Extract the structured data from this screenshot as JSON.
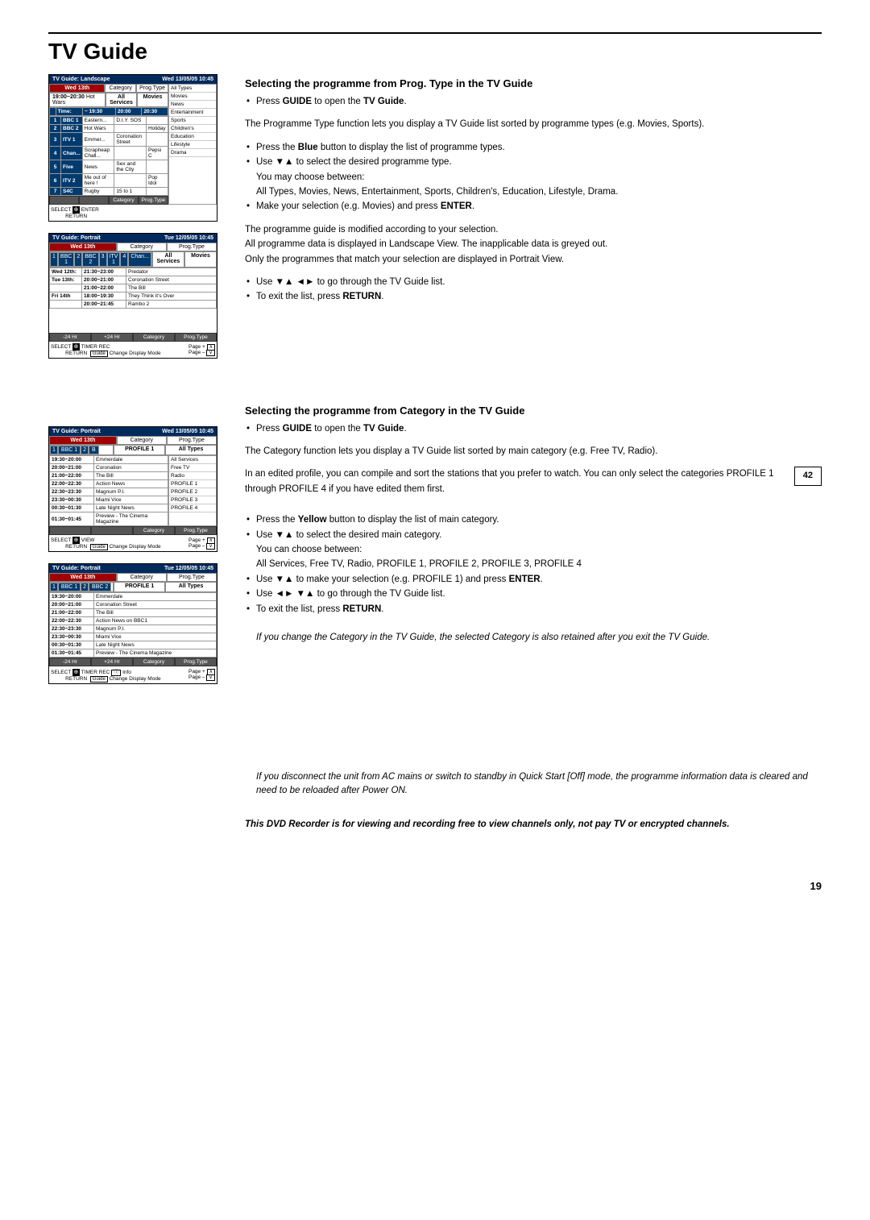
{
  "page": {
    "title": "TV Guide",
    "number": "19"
  },
  "tvguide1": {
    "title": "TV Guide: Landscape",
    "datetime": "Wed 13/05/05  10:45",
    "cat_label": "Category",
    "cat_val": "All Services",
    "type_label": "Prog.Type",
    "type_val": "Movies",
    "day": "Wed 13th",
    "timeLabel": "Time:",
    "now": "19:00~20:30",
    "nowProg": "Hot Wars",
    "cols": [
      "~ 19:30",
      "20:00",
      "20:30"
    ],
    "rows": [
      {
        "n": "1",
        "ch": "BBC 1",
        "cells": [
          "Eastern...",
          "D.I.Y. SOS",
          ""
        ]
      },
      {
        "n": "2",
        "ch": "BBC 2",
        "cells": [
          "Hot Wars",
          "",
          "Holiday"
        ]
      },
      {
        "n": "3",
        "ch": "ITV 1",
        "cells": [
          "Emmer...",
          "Coronation Street",
          ""
        ]
      },
      {
        "n": "4",
        "ch": "Chan...",
        "cells": [
          "Scrapheap Chall...",
          "",
          "Pepsi C"
        ]
      },
      {
        "n": "5",
        "ch": "Five",
        "cells": [
          "News",
          "Sex and the City",
          ""
        ]
      },
      {
        "n": "6",
        "ch": "ITV 2",
        "cells": [
          "Me out of here !",
          "",
          "Pop Idol"
        ]
      },
      {
        "n": "7",
        "ch": "S4C",
        "cells": [
          "Rugby",
          "15 to 1",
          ""
        ]
      }
    ],
    "types": [
      "All Types",
      "Movies",
      "News",
      "Entertainment",
      "Sports",
      "Children's",
      "Education",
      "Lifestyle",
      "Drama"
    ],
    "footer": [
      "",
      "",
      "Category",
      "Prog.Type"
    ],
    "hint": {
      "select": "SELECT",
      "enter": "ENTER",
      "return": "RETURN"
    }
  },
  "tvguide2": {
    "title": "TV Guide: Portrait",
    "datetime": "Tue 12/05/05  10:45",
    "cat_label": "Category",
    "cat_val": "All Services",
    "type_label": "Prog.Type",
    "type_val": "Movies",
    "day": "Wed 13th",
    "chans": [
      {
        "n": "1",
        "ch": "BBC 1"
      },
      {
        "n": "2",
        "ch": "BBC 2"
      },
      {
        "n": "3",
        "ch": "ITV 1"
      },
      {
        "n": "4",
        "ch": "Chan..."
      }
    ],
    "rows": [
      [
        "Wed 12th:",
        "21:30~23:00",
        "Predator"
      ],
      [
        "Tue 13th:",
        "20:00~21:00",
        "Coronation Street"
      ],
      [
        "",
        "21:00~22:00",
        "The Bill"
      ],
      [
        "Fri 14th",
        "18:00~19:30",
        "They Think it's Over"
      ],
      [
        "",
        "20:00~21:45",
        "Rambo 2"
      ]
    ],
    "footer": [
      "-24 Hr",
      "+24 Hr",
      "Category",
      "Prog.Type"
    ],
    "hint": {
      "select": "SELECT",
      "timer": "TIMER REC",
      "return": "RETURN",
      "guide": "Guide",
      "mode": "Change Display Mode",
      "pageup": "Page +",
      "pagedn": "Page –"
    }
  },
  "tvguide3": {
    "title": "TV Guide: Portrait",
    "datetime": "Wed 13/05/05  10:45",
    "cat_label": "Category",
    "cat_val": "PROFILE 1",
    "type_label": "Prog.Type",
    "type_val": "All Types",
    "day": "Wed 13th",
    "chans": [
      {
        "n": "1",
        "ch": "BBC 1"
      },
      {
        "n": "2",
        "ch": "B"
      }
    ],
    "rows": [
      [
        "19:30~20:00",
        "Emmerdale"
      ],
      [
        "20:00~21:00",
        "Coronation"
      ],
      [
        "21:00~22:00",
        "The Bill"
      ],
      [
        "22:00~22:30",
        "Action News"
      ],
      [
        "22:30~23:30",
        "Magnum P.I."
      ],
      [
        "23:30~00:30",
        "Miami Vice"
      ],
      [
        "00:30~01:30",
        "Late Night News"
      ],
      [
        "01:30~01:45",
        "Preview - The Cinema Magazine"
      ]
    ],
    "cats": [
      "All Services",
      "Free TV",
      "Radio",
      "PROFILE 1",
      "PROFILE 2",
      "PROFILE 3",
      "PROFILE 4"
    ],
    "footer": [
      "",
      "",
      "Category",
      "Prog.Type"
    ],
    "hint": {
      "select": "SELECT",
      "view": "VIEW",
      "return": "RETURN",
      "guide": "Guide",
      "mode": "Change Display Mode",
      "pageup": "Page +",
      "pagedn": "Page –"
    }
  },
  "tvguide4": {
    "title": "TV Guide: Portrait",
    "datetime": "Tue 12/05/05  10:45",
    "cat_label": "Category",
    "cat_val": "PROFILE 1",
    "type_label": "Prog.Type",
    "type_val": "All Types",
    "day": "Wed 13th",
    "chans": [
      {
        "n": "1",
        "ch": "BBC 1"
      },
      {
        "n": "2",
        "ch": "BBC 2"
      }
    ],
    "rows": [
      [
        "19:30~20:00",
        "Emmerdale"
      ],
      [
        "20:00~21:00",
        "Coronation Street"
      ],
      [
        "21:00~22:00",
        "The Bill"
      ],
      [
        "22:00~22:30",
        "Action News on BBC1"
      ],
      [
        "22:30~23:30",
        "Magnum P.I."
      ],
      [
        "23:30~00:30",
        "Miami Vice"
      ],
      [
        "00:30~01:30",
        "Late Night News"
      ],
      [
        "01:30~01:45",
        "Preview - The Cinema Magazine"
      ]
    ],
    "footer": [
      "-24 Hr",
      "+24 Hr",
      "Category",
      "Prog.Type"
    ],
    "hint": {
      "select": "SELECT",
      "timer": "TIMER REC",
      "info": "Info",
      "return": "RETURN",
      "guide": "Guide",
      "mode": "Change Display Mode",
      "pageup": "Page +",
      "pagedn": "Page –"
    }
  },
  "sec1": {
    "heading": "Selecting the programme from Prog. Type in the TV Guide",
    "b1_pre": "Press ",
    "b1_bold1": "GUIDE",
    "b1_mid": " to open the ",
    "b1_bold2": "TV Guide",
    "b1_end": ".",
    "p1": "The Programme Type function lets you display a TV Guide list sorted by programme types (e.g. Movies, Sports).",
    "b2_pre": "Press the ",
    "b2_bold": "Blue",
    "b2_end": " button to display the list of programme types.",
    "b3_pre": "Use ▼▲ to select the desired programme type.",
    "b3_sub1": "You may choose between:",
    "b3_sub2": "All Types, Movies, News, Entertainment, Sports, Children's, Education, Lifestyle, Drama.",
    "b4_pre": "Make your selection (e.g. Movies) and press ",
    "b4_bold": "ENTER",
    "b4_end": ".",
    "p2a": "The programme guide is modified according to your selection.",
    "p2b": "All programme data is displayed in Landscape View. The inapplicable data is greyed out.",
    "p2c": "Only the programmes that match your selection are displayed in Portrait View.",
    "b5": "Use ▼▲ ◄► to go through the TV Guide list.",
    "b6_pre": "To exit the list, press ",
    "b6_bold": "RETURN",
    "b6_end": "."
  },
  "sec2": {
    "heading": "Selecting the programme from Category in the TV Guide",
    "b1_pre": "Press ",
    "b1_bold1": "GUIDE",
    "b1_mid": " to open the ",
    "b1_bold2": "TV Guide",
    "b1_end": ".",
    "p1": "The Category function lets you display a TV Guide list sorted by main category (e.g. Free TV, Radio).",
    "p2": "In an edited profile, you can compile and sort the stations that you prefer to watch. You can only select the categories PROFILE 1 through PROFILE 4 if you have edited them first.",
    "ref": "42",
    "b2_pre": "Press the ",
    "b2_bold": "Yellow",
    "b2_end": " button to display the list of main category.",
    "b3": "Use ▼▲ to select the desired main category.",
    "b3_sub1": "You can choose between:",
    "b3_sub2": "All Services, Free TV, Radio, PROFILE 1, PROFILE 2, PROFILE 3, PROFILE 4",
    "b4_pre": "Use ▼▲ to make your selection (e.g. PROFILE 1) and press ",
    "b4_bold": "ENTER",
    "b4_end": ".",
    "b5": "Use ◄► ▼▲ to go through the TV Guide list.",
    "b6_pre": "To exit the list, press ",
    "b6_bold": "RETURN",
    "b6_end": ".",
    "note1": "If you change the Category in the TV Guide, the selected Category is also retained after you exit the TV Guide.",
    "note2": "If you disconnect the unit from AC mains or switch to standby in Quick Start [Off] mode, the programme information data is cleared and need to be reloaded after Power ON.",
    "note3": "This DVD Recorder is for viewing and recording free to view channels only, not pay TV or encrypted channels."
  }
}
